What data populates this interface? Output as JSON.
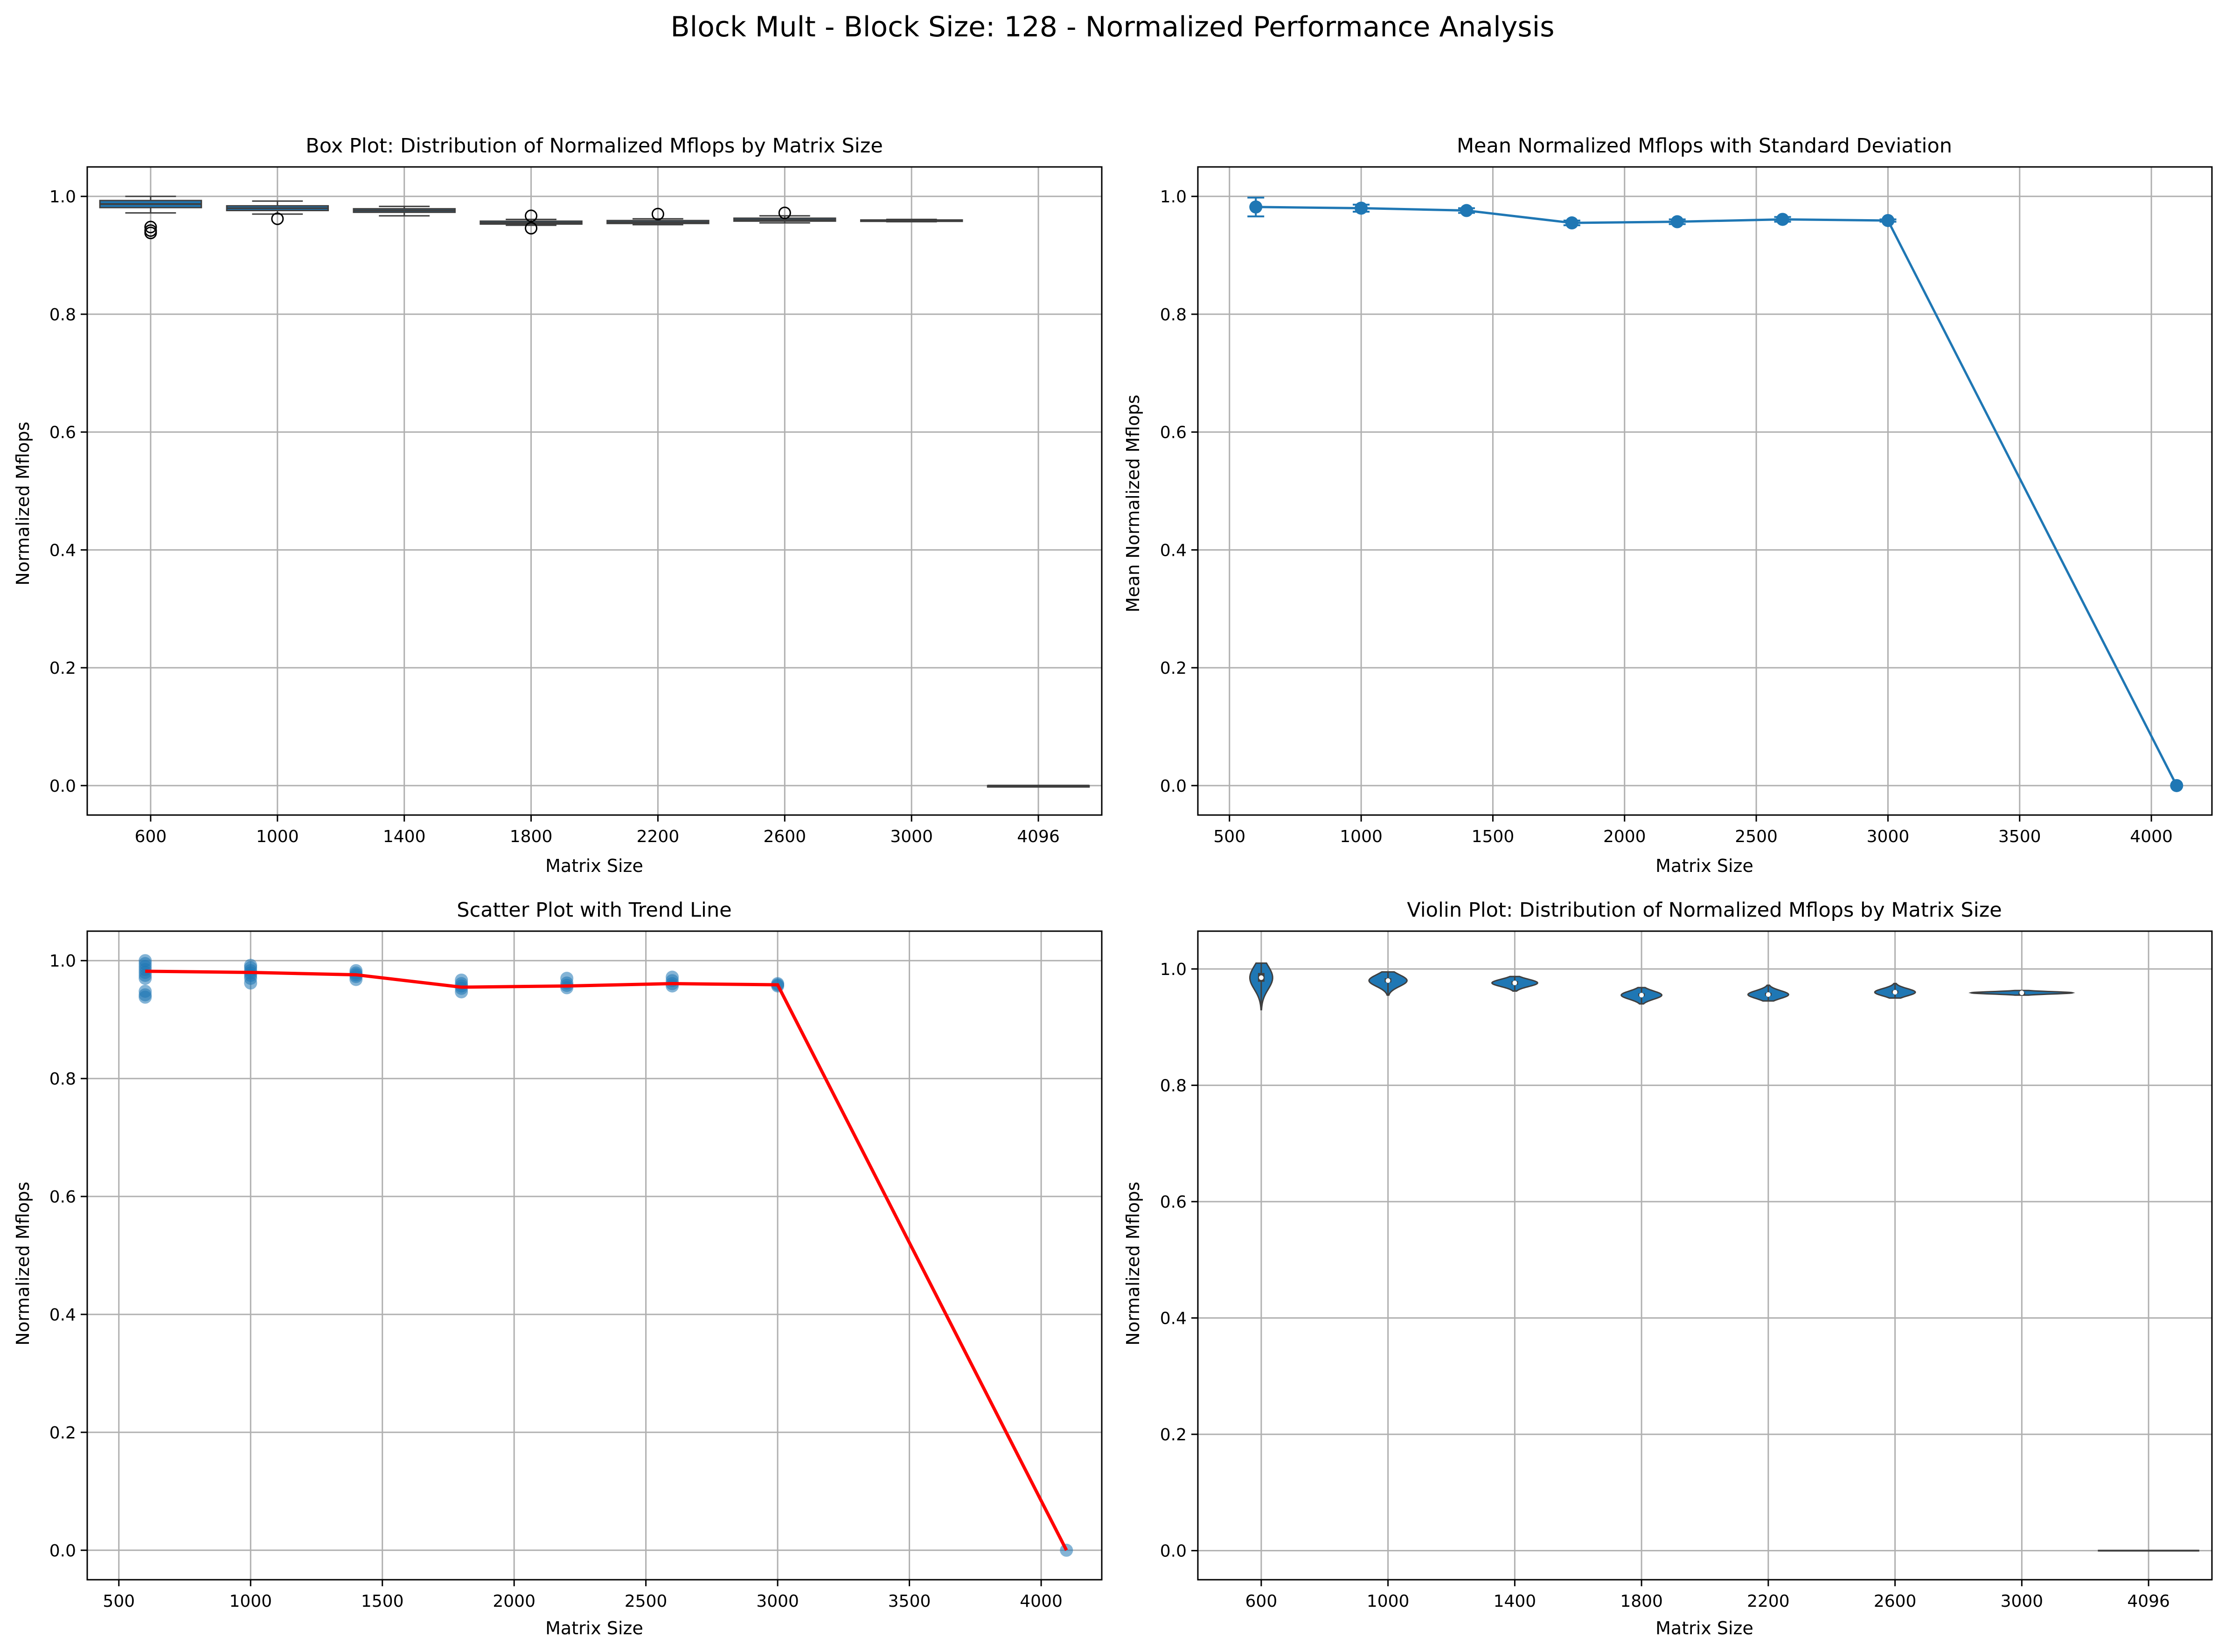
{
  "figure": {
    "suptitle": "Block Mult - Block Size: 128 - Normalized Performance Analysis"
  },
  "colors": {
    "series_blue": "#1f77b4",
    "trend_red": "#ff0000",
    "box_face": "#1f77b4",
    "grid": "#b0b0b0"
  },
  "chart_data": [
    {
      "type": "box",
      "title": "Box Plot: Distribution of Normalized Mflops by Matrix Size",
      "xlabel": "Matrix Size",
      "ylabel": "Normalized Mflops",
      "ylim": [
        -0.05,
        1.05
      ],
      "yticks": [
        "0.0",
        "0.2",
        "0.4",
        "0.6",
        "0.8",
        "1.0"
      ],
      "grid": true,
      "categories": [
        "600",
        "1000",
        "1400",
        "1800",
        "2200",
        "2600",
        "3000",
        "4096"
      ],
      "boxes": [
        {
          "whisker_low": 0.972,
          "q1": 0.981,
          "median": 0.987,
          "q3": 0.993,
          "whisker_high": 1.0,
          "outliers": [
            0.948,
            0.942,
            0.938
          ]
        },
        {
          "whisker_low": 0.97,
          "q1": 0.976,
          "median": 0.98,
          "q3": 0.984,
          "whisker_high": 0.992,
          "outliers": [
            0.962
          ]
        },
        {
          "whisker_low": 0.967,
          "q1": 0.973,
          "median": 0.976,
          "q3": 0.979,
          "whisker_high": 0.983,
          "outliers": []
        },
        {
          "whisker_low": 0.951,
          "q1": 0.953,
          "median": 0.955,
          "q3": 0.958,
          "whisker_high": 0.961,
          "outliers": [
            0.967,
            0.946
          ]
        },
        {
          "whisker_low": 0.952,
          "q1": 0.954,
          "median": 0.956,
          "q3": 0.959,
          "whisker_high": 0.962,
          "outliers": [
            0.97
          ]
        },
        {
          "whisker_low": 0.955,
          "q1": 0.958,
          "median": 0.96,
          "q3": 0.963,
          "whisker_high": 0.967,
          "outliers": [
            0.972
          ]
        },
        {
          "whisker_low": 0.957,
          "q1": 0.958,
          "median": 0.959,
          "q3": 0.96,
          "whisker_high": 0.961,
          "outliers": []
        },
        {
          "whisker_low": 0.0,
          "q1": 0.0,
          "median": 0.0,
          "q3": 0.0,
          "whisker_high": 0.0,
          "outliers": []
        }
      ]
    },
    {
      "type": "line",
      "title": "Mean Normalized Mflops with Standard Deviation",
      "xlabel": "Matrix Size",
      "ylabel": "Mean Normalized Mflops",
      "xlim": [
        380,
        4230
      ],
      "ylim": [
        -0.05,
        1.05
      ],
      "xticks": [
        "500",
        "1000",
        "1500",
        "2000",
        "2500",
        "3000",
        "3500",
        "4000"
      ],
      "yticks": [
        "0.0",
        "0.2",
        "0.4",
        "0.6",
        "0.8",
        "1.0"
      ],
      "grid": true,
      "series": [
        {
          "x": [
            600,
            1000,
            1400,
            1800,
            2200,
            2600,
            3000,
            4096
          ],
          "y": [
            0.982,
            0.98,
            0.976,
            0.955,
            0.957,
            0.961,
            0.959,
            0.0
          ],
          "std": [
            0.016,
            0.006,
            0.004,
            0.004,
            0.004,
            0.004,
            0.002,
            0.0
          ]
        }
      ]
    },
    {
      "type": "scatter",
      "title": "Scatter Plot with Trend Line",
      "xlabel": "Matrix Size",
      "ylabel": "Normalized Mflops",
      "xlim": [
        380,
        4230
      ],
      "ylim": [
        -0.05,
        1.05
      ],
      "xticks": [
        "500",
        "1000",
        "1500",
        "2000",
        "2500",
        "3000",
        "3500",
        "4000"
      ],
      "yticks": [
        "0.0",
        "0.2",
        "0.4",
        "0.6",
        "0.8",
        "1.0"
      ],
      "grid": true,
      "points": [
        [
          600,
          1.0
        ],
        [
          600,
          0.995
        ],
        [
          600,
          0.99
        ],
        [
          600,
          0.985
        ],
        [
          600,
          0.98
        ],
        [
          600,
          0.975
        ],
        [
          600,
          0.97
        ],
        [
          600,
          0.948
        ],
        [
          600,
          0.942
        ],
        [
          600,
          0.938
        ],
        [
          1000,
          0.992
        ],
        [
          1000,
          0.988
        ],
        [
          1000,
          0.983
        ],
        [
          1000,
          0.979
        ],
        [
          1000,
          0.975
        ],
        [
          1000,
          0.97
        ],
        [
          1000,
          0.962
        ],
        [
          1400,
          0.983
        ],
        [
          1400,
          0.979
        ],
        [
          1400,
          0.976
        ],
        [
          1400,
          0.973
        ],
        [
          1400,
          0.968
        ],
        [
          1800,
          0.967
        ],
        [
          1800,
          0.961
        ],
        [
          1800,
          0.957
        ],
        [
          1800,
          0.953
        ],
        [
          1800,
          0.947
        ],
        [
          2200,
          0.97
        ],
        [
          2200,
          0.962
        ],
        [
          2200,
          0.958
        ],
        [
          2200,
          0.954
        ],
        [
          2600,
          0.972
        ],
        [
          2600,
          0.966
        ],
        [
          2600,
          0.961
        ],
        [
          2600,
          0.957
        ],
        [
          3000,
          0.961
        ],
        [
          3000,
          0.959
        ],
        [
          3000,
          0.957
        ],
        [
          4096,
          0.0
        ]
      ],
      "trend": {
        "x": [
          600,
          1000,
          1400,
          1800,
          2200,
          2600,
          3000,
          4096
        ],
        "y": [
          0.982,
          0.98,
          0.976,
          0.955,
          0.957,
          0.961,
          0.959,
          0.0
        ]
      }
    },
    {
      "type": "violin",
      "title": "Violin Plot: Distribution of Normalized Mflops by Matrix Size",
      "xlabel": "Matrix Size",
      "ylabel": "Normalized Mflops",
      "ylim": [
        -0.05,
        1.065
      ],
      "yticks": [
        "0.0",
        "0.2",
        "0.4",
        "0.6",
        "0.8",
        "1.0"
      ],
      "grid": true,
      "categories": [
        "600",
        "1000",
        "1400",
        "1800",
        "2200",
        "2600",
        "3000",
        "4096"
      ],
      "violins": [
        {
          "center": 0.985,
          "low": 0.93,
          "high": 1.01,
          "width": 0.18,
          "median": 0.985,
          "q1": 0.978,
          "q3": 0.993
        },
        {
          "center": 0.98,
          "low": 0.955,
          "high": 0.995,
          "width": 0.3,
          "median": 0.98,
          "q1": 0.977,
          "q3": 0.984
        },
        {
          "center": 0.976,
          "low": 0.962,
          "high": 0.987,
          "width": 0.36,
          "median": 0.976,
          "q1": 0.973,
          "q3": 0.979
        },
        {
          "center": 0.955,
          "low": 0.94,
          "high": 0.968,
          "width": 0.32,
          "median": 0.955,
          "q1": 0.953,
          "q3": 0.958
        },
        {
          "center": 0.956,
          "low": 0.945,
          "high": 0.972,
          "width": 0.32,
          "median": 0.956,
          "q1": 0.954,
          "q3": 0.959
        },
        {
          "center": 0.96,
          "low": 0.95,
          "high": 0.975,
          "width": 0.32,
          "median": 0.96,
          "q1": 0.958,
          "q3": 0.963
        },
        {
          "center": 0.959,
          "low": 0.955,
          "high": 0.963,
          "width": 0.8,
          "median": 0.959,
          "q1": 0.958,
          "q3": 0.96
        },
        {
          "center": 0.0,
          "low": 0.0,
          "high": 0.0,
          "width": 0.8,
          "median": 0.0,
          "q1": 0.0,
          "q3": 0.0
        }
      ]
    }
  ]
}
